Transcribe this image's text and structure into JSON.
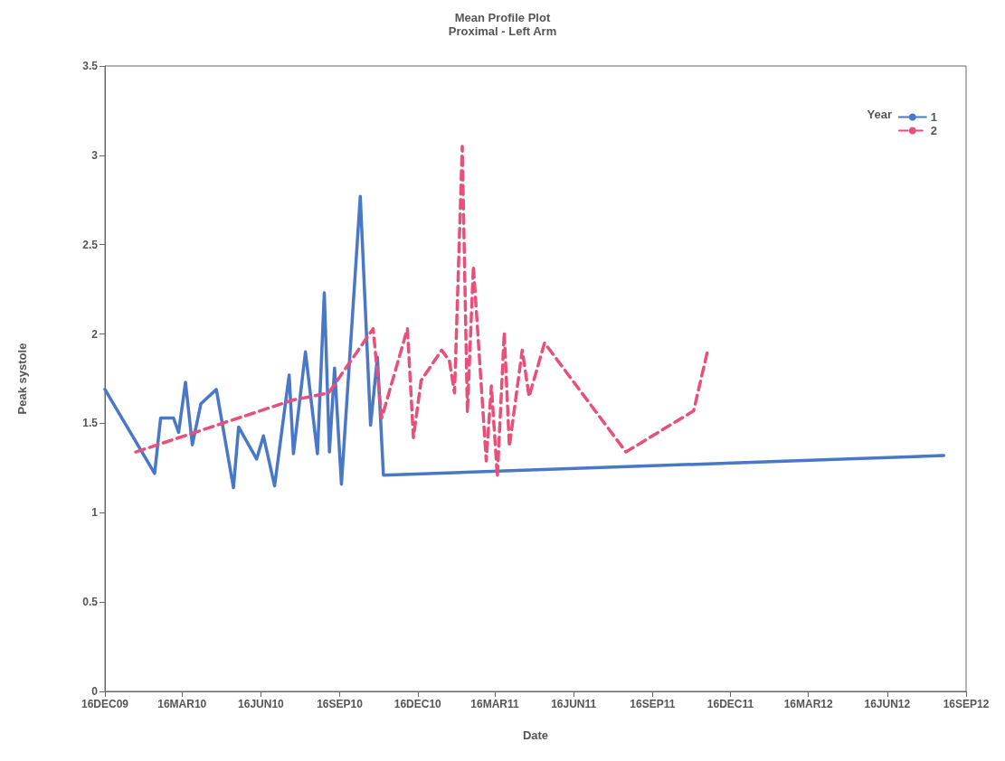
{
  "chart_data": {
    "type": "line",
    "title": "Mean Profile Plot",
    "subtitle": "Proximal - Left Arm",
    "xlabel": "Date",
    "ylabel": "Peak systole",
    "legend_title": "Year",
    "legend": "top right",
    "grid": false,
    "marker": "none",
    "xlim": [
      "2009-12-16",
      "2012-09-16"
    ],
    "xticks": [
      {
        "value": "2009-12-16",
        "label": "16DEC09"
      },
      {
        "value": "2010-03-16",
        "label": "16MAR10"
      },
      {
        "value": "2010-06-16",
        "label": "16JUN10"
      },
      {
        "value": "2010-09-16",
        "label": "16SEP10"
      },
      {
        "value": "2010-12-16",
        "label": "16DEC10"
      },
      {
        "value": "2011-03-16",
        "label": "16MAR11"
      },
      {
        "value": "2011-06-16",
        "label": "16JUN11"
      },
      {
        "value": "2011-09-16",
        "label": "16SEP11"
      },
      {
        "value": "2011-12-16",
        "label": "16DEC11"
      },
      {
        "value": "2012-03-16",
        "label": "16MAR12"
      },
      {
        "value": "2012-06-16",
        "label": "16JUN12"
      },
      {
        "value": "2012-09-16",
        "label": "16SEP12"
      }
    ],
    "ylim": [
      0,
      3.5
    ],
    "yticks": [
      0,
      0.5,
      1,
      1.5,
      2,
      2.5,
      3,
      3.5
    ],
    "series": [
      {
        "name": "1",
        "color": "#4a78c8",
        "line_style": "solid",
        "x": [
          "2009-12-16",
          "2010-02-12",
          "2010-02-19",
          "2010-03-06",
          "2010-03-12",
          "2010-03-20",
          "2010-03-28",
          "2010-04-07",
          "2010-04-25",
          "2010-05-15",
          "2010-05-21",
          "2010-06-11",
          "2010-06-19",
          "2010-07-02",
          "2010-07-19",
          "2010-07-24",
          "2010-08-07",
          "2010-08-21",
          "2010-08-29",
          "2010-09-04",
          "2010-09-10",
          "2010-09-18",
          "2010-10-10",
          "2010-10-22",
          "2010-10-30",
          "2010-11-06",
          "2012-08-21"
        ],
        "values": [
          1.69,
          1.22,
          1.53,
          1.53,
          1.45,
          1.73,
          1.38,
          1.61,
          1.69,
          1.14,
          1.48,
          1.3,
          1.43,
          1.15,
          1.77,
          1.33,
          1.9,
          1.33,
          2.23,
          1.34,
          1.81,
          1.16,
          2.77,
          1.49,
          1.87,
          1.21,
          1.32
        ]
      },
      {
        "name": "2",
        "color": "#e8507a",
        "line_style": "dashed",
        "x": [
          "2010-01-21",
          "2010-07-23",
          "2010-09-03",
          "2010-10-25",
          "2010-11-04",
          "2010-12-04",
          "2010-12-11",
          "2010-12-20",
          "2011-01-13",
          "2011-01-22",
          "2011-01-28",
          "2011-02-06",
          "2011-02-12",
          "2011-02-19",
          "2011-03-06",
          "2011-03-12",
          "2011-03-19",
          "2011-03-27",
          "2011-04-02",
          "2011-04-17",
          "2011-04-25",
          "2011-05-13",
          "2011-08-16",
          "2011-11-03",
          "2011-11-20"
        ],
        "values": [
          1.34,
          1.63,
          1.67,
          2.03,
          1.53,
          2.03,
          1.42,
          1.74,
          1.91,
          1.85,
          1.67,
          3.05,
          1.56,
          2.38,
          1.29,
          1.71,
          1.2,
          2.01,
          1.37,
          1.91,
          1.65,
          1.95,
          1.34,
          1.57,
          1.92
        ]
      }
    ]
  }
}
